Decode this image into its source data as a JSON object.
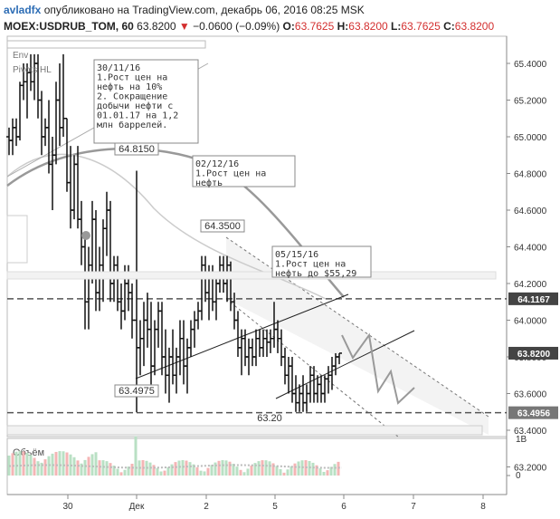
{
  "header": {
    "author": "avladfx",
    "published_text": "опубликовано на TradingView.com, декабрь 06, 2016 08:25 MSK",
    "symbol": "MOEX:USDRUB_TOM, 60",
    "last": "63.8200",
    "change_arrow": "▼",
    "change": "−0.0600 (−0.09%)",
    "o_label": "O:",
    "o_value": "63.7625",
    "h_label": "H:",
    "h_value": "63.8200",
    "l_label": "L:",
    "l_value": "63.7625",
    "c_label": "C:",
    "c_value": "63.8200"
  },
  "chart_data": {
    "type": "candlestick",
    "yticks": [
      "65.4000",
      "65.2000",
      "65.0000",
      "64.8000",
      "64.6000",
      "64.4000",
      "64.2000",
      "64.0000",
      "63.8000",
      "63.6000",
      "63.4000",
      "63.2000"
    ],
    "ylim": [
      63.1,
      65.55
    ],
    "xticks": [
      "30",
      "Дек",
      "2",
      "5",
      "6",
      "7",
      "8"
    ],
    "price_badges": [
      {
        "value": "64.1167",
        "price": 64.1167,
        "style": "dark"
      },
      {
        "value": "63.8200",
        "price": 63.82,
        "style": "dark"
      },
      {
        "value": "63.4956",
        "price": 63.4956,
        "style": "light"
      }
    ],
    "level_labels": [
      {
        "text": "64.8150",
        "price": 64.815
      },
      {
        "text": "64.3500",
        "price": 64.35
      },
      {
        "text": "63.4975",
        "price": 63.4975
      },
      {
        "text": "63.20",
        "price": 63.2
      }
    ],
    "annotations": [
      {
        "lines": [
          "30/11/16",
          "1.Рост цен на",
          "нефть на 10%",
          "2. Сокращение",
          "добычи нефти с",
          "01.01.17 на 1,2",
          "млн баррелей."
        ]
      },
      {
        "lines": [
          "02/12/16",
          "1.Рост цен на",
          "нефть"
        ]
      },
      {
        "lines": [
          "05/15/16",
          "1.Рост цен на",
          "нефть до $55,29"
        ]
      }
    ],
    "indicators": [
      "Env",
      "Pivots HL"
    ],
    "volume_label": "Объём",
    "volume_axis": [
      "1B",
      "0"
    ]
  }
}
